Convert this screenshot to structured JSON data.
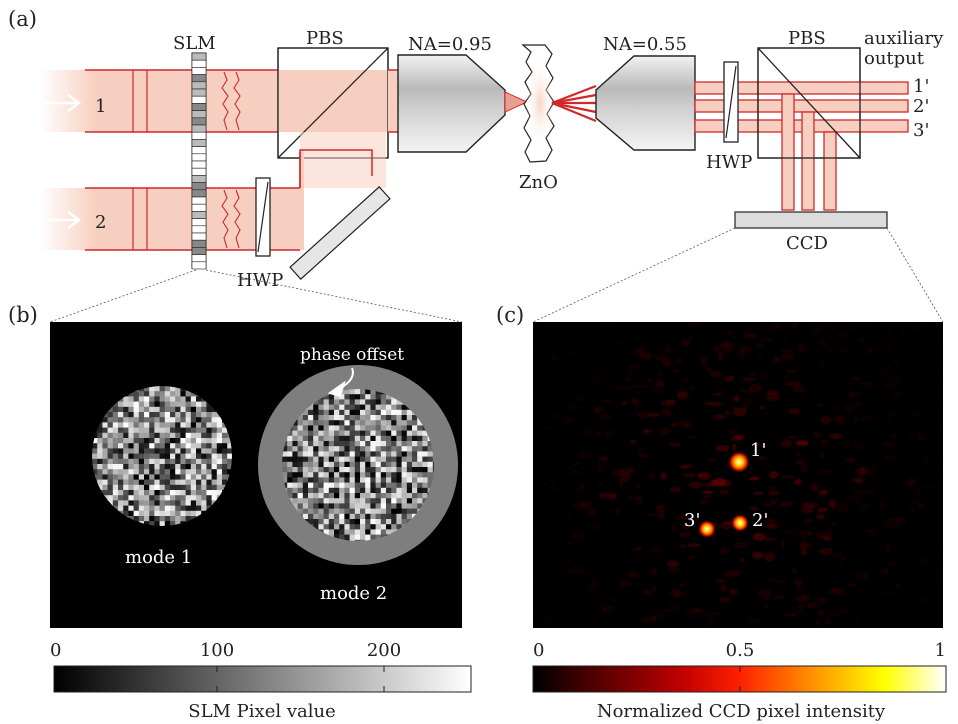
{
  "panel_a": {
    "label": "(a)",
    "beam_1": "1",
    "beam_2": "2",
    "slm": "SLM",
    "pbs_left": "PBS",
    "hwp_left": "HWP",
    "na_in": "NA=0.95",
    "sample": "ZnO",
    "na_out": "NA=0.55",
    "hwp_right": "HWP",
    "pbs_right": "PBS",
    "aux_line1": "auxiliary",
    "aux_line2": "output",
    "out_1": "1'",
    "out_2": "2'",
    "out_3": "3'",
    "ccd": "CCD",
    "colors": {
      "beam_fill": "#f7cfc0",
      "beam_line": "#d1282a",
      "ccd_fill": "#dcdcdc"
    }
  },
  "panel_b": {
    "label": "(b)",
    "mode_1": "mode 1",
    "mode_2": "mode 2",
    "phase_offset": "phase offset",
    "colorbar": {
      "ticks": [
        "0",
        "100",
        "200"
      ],
      "tick_values": [
        0,
        100,
        200
      ],
      "range": [
        0,
        255
      ],
      "title": "SLM Pixel value",
      "colormap": "grayscale"
    }
  },
  "panel_c": {
    "label": "(c)",
    "spots": [
      "1'",
      "2'",
      "3'"
    ],
    "colorbar": {
      "ticks": [
        "0",
        "0.5",
        "1"
      ],
      "tick_values": [
        0,
        0.5,
        1
      ],
      "range": [
        0,
        1
      ],
      "title": "Normalized CCD pixel intensity",
      "colormap": "hot"
    }
  }
}
